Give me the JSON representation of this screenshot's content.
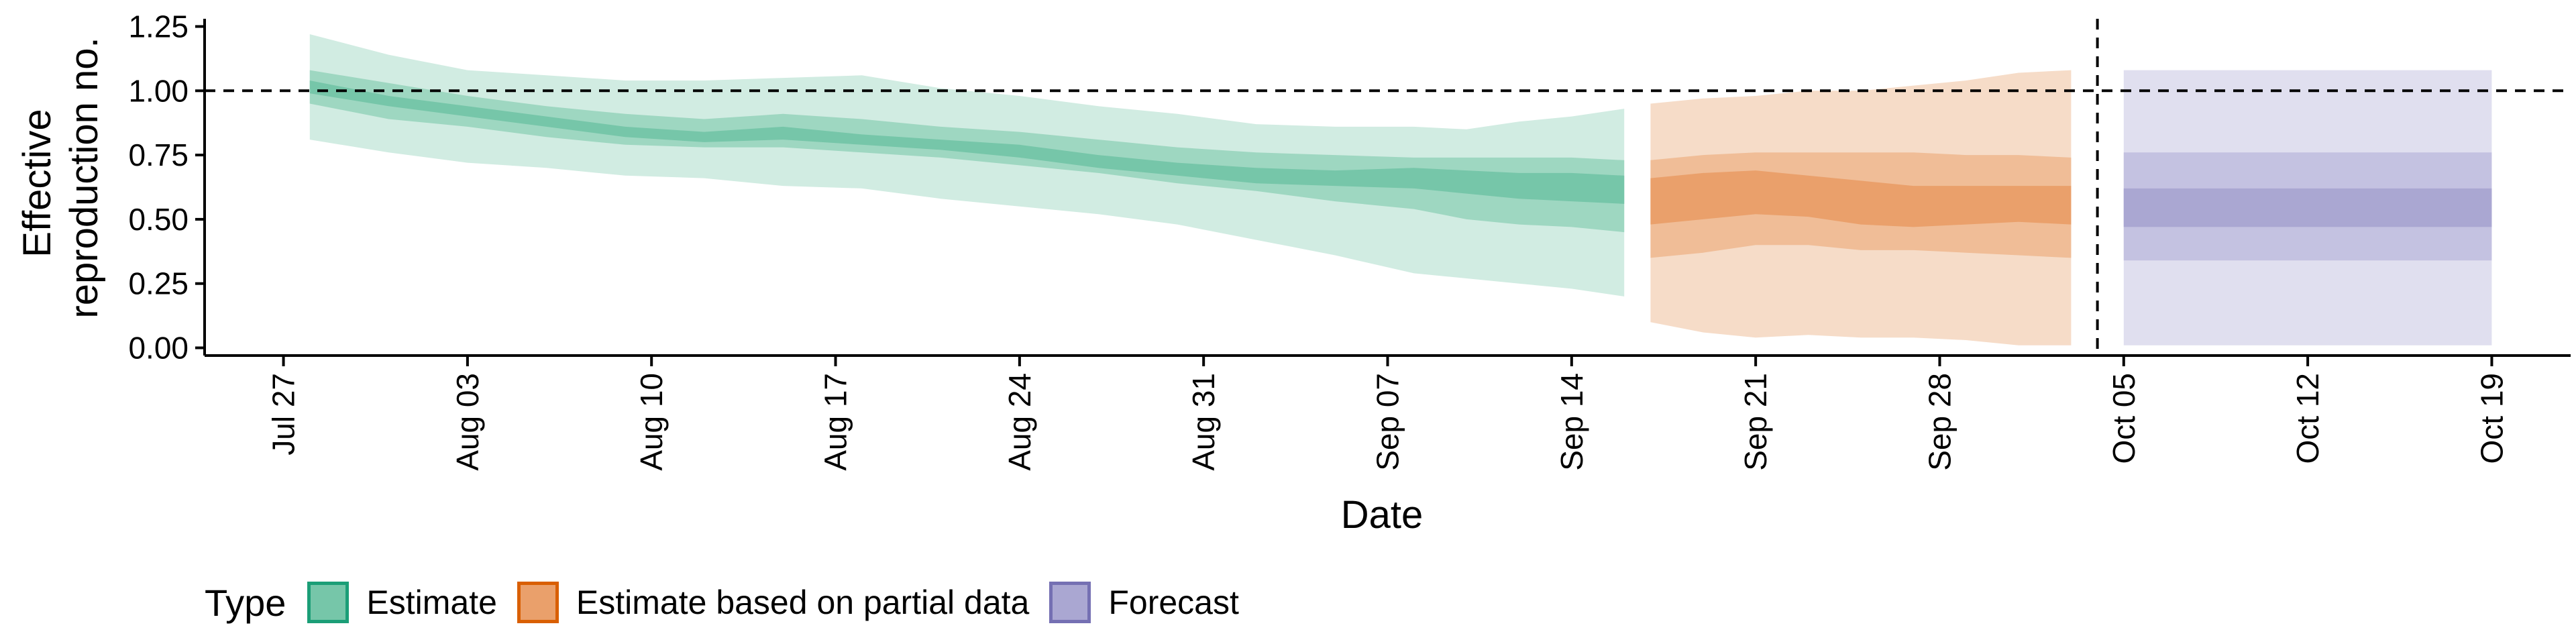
{
  "chart_data": {
    "type": "area",
    "xlabel": "Date",
    "ylabel_lines": [
      "Effective",
      "reproduction no."
    ],
    "x_ticks": [
      {
        "date": "2020-07-27",
        "label": "Jul 27"
      },
      {
        "date": "2020-08-03",
        "label": "Aug 03"
      },
      {
        "date": "2020-08-10",
        "label": "Aug 10"
      },
      {
        "date": "2020-08-17",
        "label": "Aug 17"
      },
      {
        "date": "2020-08-24",
        "label": "Aug 24"
      },
      {
        "date": "2020-08-31",
        "label": "Aug 31"
      },
      {
        "date": "2020-09-07",
        "label": "Sep 07"
      },
      {
        "date": "2020-09-14",
        "label": "Sep 14"
      },
      {
        "date": "2020-09-21",
        "label": "Sep 21"
      },
      {
        "date": "2020-09-28",
        "label": "Sep 28"
      },
      {
        "date": "2020-10-05",
        "label": "Oct 05"
      },
      {
        "date": "2020-10-12",
        "label": "Oct 12"
      },
      {
        "date": "2020-10-19",
        "label": "Oct 19"
      }
    ],
    "y_ticks": [
      {
        "value": 0,
        "label": "0.00"
      },
      {
        "value": 0.25,
        "label": "0.25"
      },
      {
        "value": 0.5,
        "label": "0.50"
      },
      {
        "value": 0.75,
        "label": "0.75"
      },
      {
        "value": 1.0,
        "label": "1.00"
      },
      {
        "value": 1.25,
        "label": "1.25"
      }
    ],
    "xlim": [
      "2020-07-24",
      "2020-10-22"
    ],
    "ylim": [
      -0.03,
      1.28
    ],
    "reference_hline": 1.0,
    "reference_vline": "2020-10-04",
    "grid": false,
    "legend": {
      "title": "Type",
      "position": "bottom",
      "items": [
        {
          "label": "Estimate",
          "fill": "#76c6a9",
          "border": "#1b9e77"
        },
        {
          "label": "Estimate based on partial data",
          "fill": "#eaa06b",
          "border": "#d95f02"
        },
        {
          "label": "Forecast",
          "fill": "#aaa7d2",
          "border": "#7570b3"
        }
      ]
    },
    "series": [
      {
        "type": "Estimate",
        "colors": {
          "outer": "#d1ece2",
          "mid": "#9ed7c1",
          "inner": "#76c6a9"
        },
        "dates": [
          "2020-07-28",
          "2020-07-31",
          "2020-08-03",
          "2020-08-06",
          "2020-08-09",
          "2020-08-12",
          "2020-08-15",
          "2020-08-18",
          "2020-08-21",
          "2020-08-24",
          "2020-08-27",
          "2020-08-30",
          "2020-09-02",
          "2020-09-05",
          "2020-09-08",
          "2020-09-10",
          "2020-09-12",
          "2020-09-14",
          "2020-09-16"
        ],
        "lower90": [
          0.81,
          0.76,
          0.72,
          0.7,
          0.67,
          0.66,
          0.63,
          0.62,
          0.58,
          0.55,
          0.52,
          0.48,
          0.42,
          0.36,
          0.29,
          0.27,
          0.25,
          0.23,
          0.2
        ],
        "upper90": [
          1.22,
          1.14,
          1.08,
          1.06,
          1.04,
          1.04,
          1.05,
          1.06,
          1.01,
          0.98,
          0.94,
          0.91,
          0.87,
          0.86,
          0.86,
          0.85,
          0.88,
          0.9,
          0.93
        ],
        "lower50": [
          0.95,
          0.89,
          0.86,
          0.82,
          0.79,
          0.78,
          0.78,
          0.76,
          0.74,
          0.71,
          0.68,
          0.64,
          0.61,
          0.57,
          0.54,
          0.5,
          0.48,
          0.47,
          0.45
        ],
        "upper50": [
          1.08,
          1.03,
          0.98,
          0.94,
          0.91,
          0.89,
          0.91,
          0.89,
          0.86,
          0.84,
          0.81,
          0.78,
          0.76,
          0.75,
          0.74,
          0.74,
          0.74,
          0.74,
          0.73
        ],
        "lower20": [
          0.99,
          0.94,
          0.9,
          0.86,
          0.82,
          0.8,
          0.81,
          0.79,
          0.77,
          0.74,
          0.7,
          0.67,
          0.64,
          0.63,
          0.62,
          0.6,
          0.58,
          0.57,
          0.56
        ],
        "upper20": [
          1.04,
          0.98,
          0.94,
          0.9,
          0.86,
          0.84,
          0.86,
          0.83,
          0.81,
          0.79,
          0.75,
          0.72,
          0.7,
          0.69,
          0.7,
          0.69,
          0.68,
          0.68,
          0.67
        ]
      },
      {
        "type": "Estimate based on partial data",
        "colors": {
          "outer": "#f6dcc8",
          "mid": "#f0bd97",
          "inner": "#eaa06b"
        },
        "dates": [
          "2020-09-17",
          "2020-09-19",
          "2020-09-21",
          "2020-09-23",
          "2020-09-25",
          "2020-09-27",
          "2020-09-29",
          "2020-10-01",
          "2020-10-03"
        ],
        "lower90": [
          0.1,
          0.06,
          0.04,
          0.05,
          0.04,
          0.04,
          0.03,
          0.01,
          0.01
        ],
        "upper90": [
          0.95,
          0.97,
          0.98,
          1.0,
          1.0,
          1.02,
          1.04,
          1.07,
          1.08
        ],
        "lower50": [
          0.35,
          0.37,
          0.4,
          0.4,
          0.38,
          0.38,
          0.37,
          0.36,
          0.35
        ],
        "upper50": [
          0.73,
          0.75,
          0.76,
          0.76,
          0.76,
          0.76,
          0.75,
          0.75,
          0.74
        ],
        "lower20": [
          0.48,
          0.5,
          0.52,
          0.51,
          0.48,
          0.47,
          0.48,
          0.49,
          0.48
        ],
        "upper20": [
          0.66,
          0.68,
          0.69,
          0.67,
          0.65,
          0.63,
          0.63,
          0.63,
          0.63
        ]
      },
      {
        "type": "Forecast",
        "colors": {
          "outer": "#e0dfef",
          "mid": "#c4c2e1",
          "inner": "#aaa7d2"
        },
        "dates": [
          "2020-10-05",
          "2020-10-19"
        ],
        "lower90": [
          0.01,
          0.01
        ],
        "upper90": [
          1.08,
          1.08
        ],
        "lower50": [
          0.34,
          0.34
        ],
        "upper50": [
          0.76,
          0.76
        ],
        "lower20": [
          0.47,
          0.47
        ],
        "upper20": [
          0.62,
          0.62
        ]
      }
    ]
  }
}
